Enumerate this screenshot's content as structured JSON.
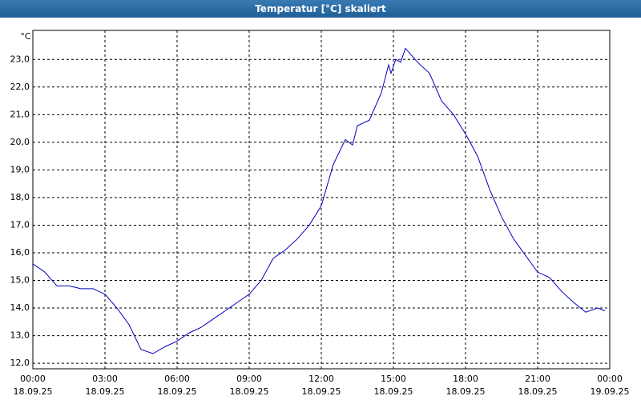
{
  "chart_data": {
    "type": "line",
    "title": "Temperatur [°C] skaliert",
    "y_label": "°C",
    "x": [
      0.0,
      0.5,
      1.0,
      1.5,
      2.0,
      2.5,
      3.0,
      3.5,
      4.0,
      4.5,
      5.0,
      5.5,
      6.0,
      6.5,
      7.0,
      7.5,
      8.0,
      8.5,
      9.0,
      9.5,
      10.0,
      10.5,
      11.0,
      11.5,
      12.0,
      12.5,
      13.0,
      13.3,
      13.5,
      14.0,
      14.5,
      14.8,
      14.9,
      15.1,
      15.3,
      15.5,
      16.0,
      16.5,
      17.0,
      17.5,
      18.0,
      18.5,
      19.0,
      19.5,
      20.0,
      20.5,
      21.0,
      21.5,
      22.0,
      22.5,
      23.0,
      23.5,
      23.8
    ],
    "series": [
      {
        "name": "Temperatur",
        "color": "#0000c0",
        "values": [
          15.6,
          15.3,
          14.8,
          14.8,
          14.7,
          14.7,
          14.5,
          14.0,
          13.4,
          12.5,
          12.35,
          12.6,
          12.8,
          13.1,
          13.3,
          13.6,
          13.9,
          14.2,
          14.5,
          15.0,
          15.8,
          16.1,
          16.5,
          17.0,
          17.7,
          19.2,
          20.1,
          19.9,
          20.6,
          20.8,
          21.8,
          22.8,
          22.5,
          23.0,
          22.9,
          23.4,
          22.9,
          22.5,
          21.5,
          21.0,
          20.3,
          19.5,
          18.3,
          17.3,
          16.5,
          15.9,
          15.3,
          15.1,
          14.6,
          14.2,
          13.85,
          14.0,
          13.9
        ]
      }
    ],
    "xlim": [
      0,
      24
    ],
    "xticks": [
      {
        "value": 0,
        "label": "00:00"
      },
      {
        "value": 3,
        "label": "03:00"
      },
      {
        "value": 6,
        "label": "06:00"
      },
      {
        "value": 9,
        "label": "09:00"
      },
      {
        "value": 12,
        "label": "12:00"
      },
      {
        "value": 15,
        "label": "15:00"
      },
      {
        "value": 18,
        "label": "18:00"
      },
      {
        "value": 21,
        "label": "21:00"
      },
      {
        "value": 24,
        "label": "00:00"
      }
    ],
    "xtick_dates": [
      "18.09.25",
      "18.09.25",
      "18.09.25",
      "18.09.25",
      "18.09.25",
      "18.09.25",
      "18.09.25",
      "18.09.25",
      "19.09.25"
    ],
    "ylim": [
      11.8,
      24.05
    ],
    "yticks": [
      {
        "value": 12,
        "label": "12,0"
      },
      {
        "value": 13,
        "label": "13,0"
      },
      {
        "value": 14,
        "label": "14,0"
      },
      {
        "value": 15,
        "label": "15,0"
      },
      {
        "value": 16,
        "label": "16,0"
      },
      {
        "value": 17,
        "label": "17,0"
      },
      {
        "value": 18,
        "label": "18,0"
      },
      {
        "value": 19,
        "label": "19,0"
      },
      {
        "value": 20,
        "label": "20,0"
      },
      {
        "value": 21,
        "label": "21,0"
      },
      {
        "value": 22,
        "label": "22,0"
      },
      {
        "value": 23,
        "label": "23,0"
      }
    ],
    "grid": true
  }
}
